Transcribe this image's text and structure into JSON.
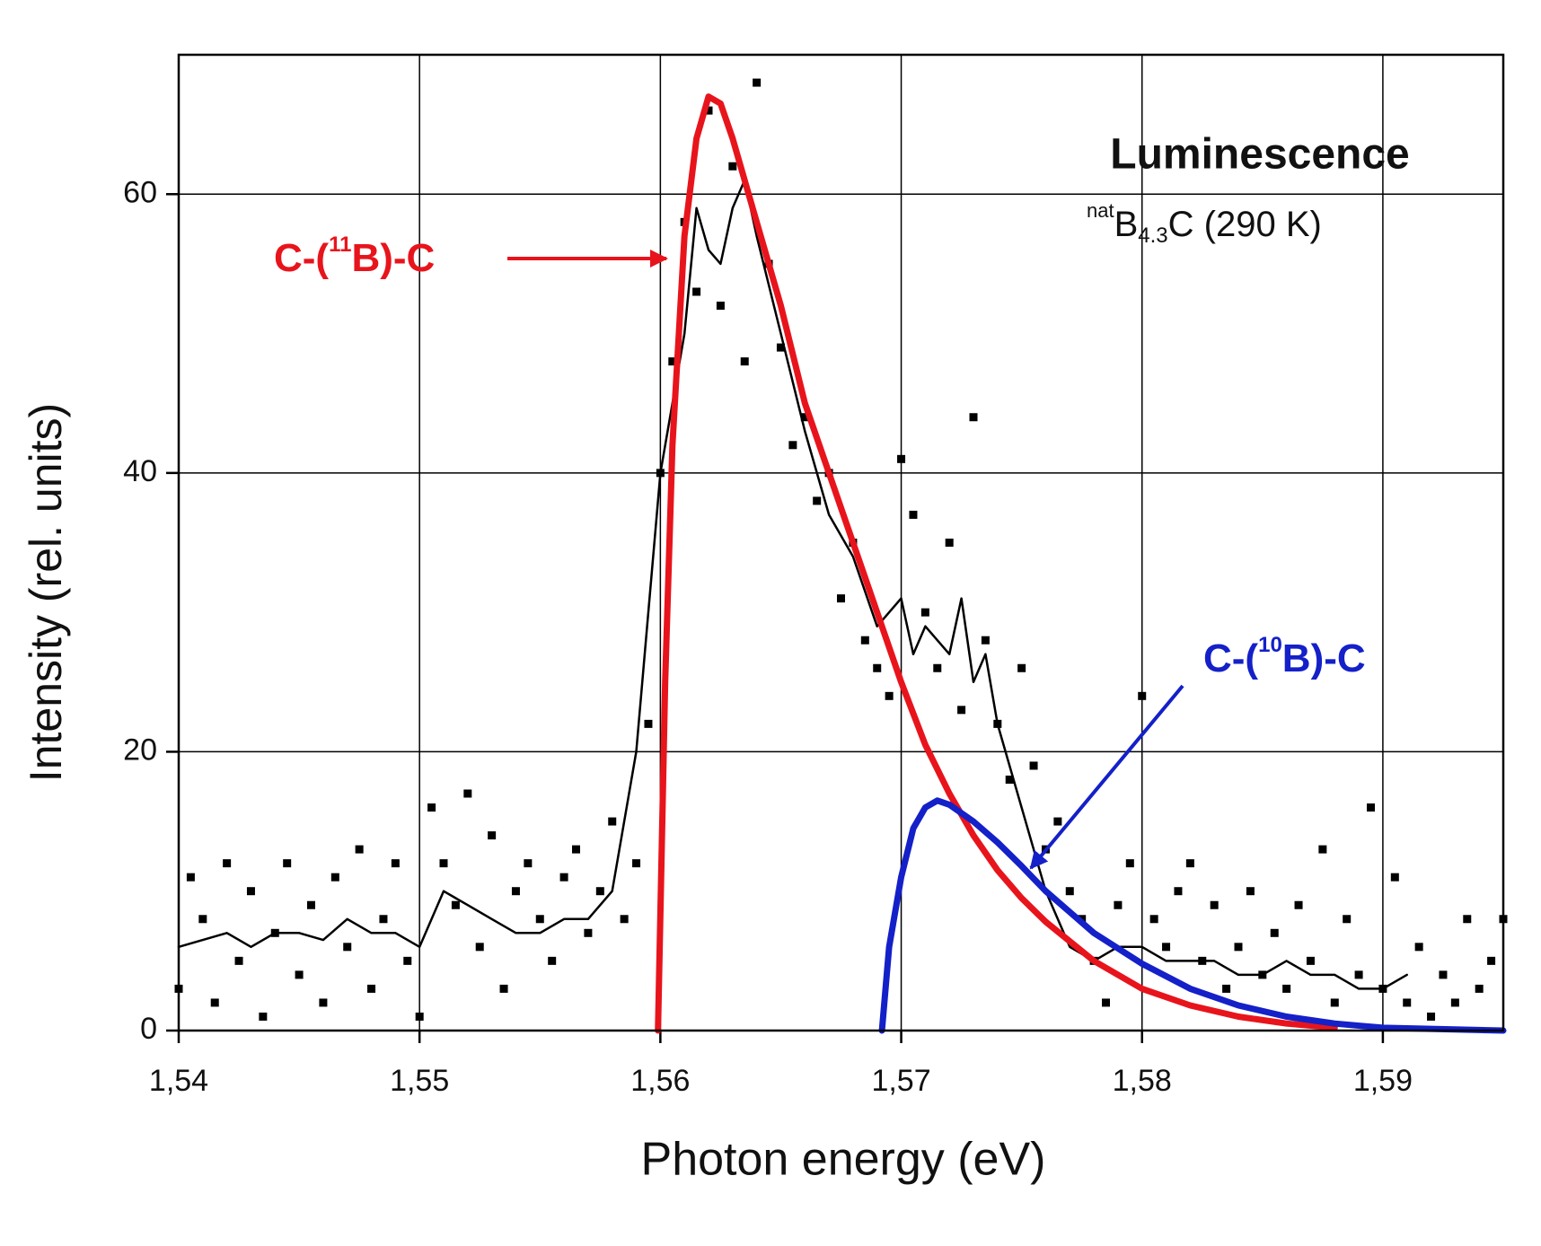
{
  "chart_data": {
    "type": "scatter",
    "xlabel": "Photon energy (eV)",
    "ylabel": "Intensity (rel. units)",
    "xlim": [
      1.54,
      1.595
    ],
    "ylim": [
      0,
      70
    ],
    "xticks": [
      {
        "value": 1.54,
        "label": "1,54"
      },
      {
        "value": 1.55,
        "label": "1,55"
      },
      {
        "value": 1.56,
        "label": "1,56"
      },
      {
        "value": 1.57,
        "label": "1,57"
      },
      {
        "value": 1.58,
        "label": "1,58"
      },
      {
        "value": 1.59,
        "label": "1,59"
      }
    ],
    "yticks": [
      0,
      20,
      40,
      60
    ],
    "grid": true,
    "annotations": {
      "heading": "Luminescence",
      "sample": [
        "nat",
        "B",
        "4.3",
        "C (290 K)"
      ],
      "peak_11B": {
        "parts": [
          "C-(",
          "11",
          "B)-C"
        ],
        "color": "#e8141c"
      },
      "peak_10B": {
        "parts": [
          "C-(",
          "10",
          "B)-C"
        ],
        "color": "#1420c8"
      }
    },
    "series": [
      {
        "type": "scatter",
        "color": "#000000",
        "x": [
          1.54,
          1.5405,
          1.541,
          1.5415,
          1.542,
          1.5425,
          1.543,
          1.5435,
          1.544,
          1.5445,
          1.545,
          1.5455,
          1.546,
          1.5465,
          1.547,
          1.5475,
          1.548,
          1.5485,
          1.549,
          1.5495,
          1.55,
          1.5505,
          1.551,
          1.5515,
          1.552,
          1.5525,
          1.553,
          1.5535,
          1.554,
          1.5545,
          1.555,
          1.5555,
          1.556,
          1.5565,
          1.557,
          1.5575,
          1.558,
          1.5585,
          1.559,
          1.5595,
          1.56,
          1.5605,
          1.561,
          1.5615,
          1.562,
          1.5625,
          1.563,
          1.5635,
          1.564,
          1.5645,
          1.565,
          1.5655,
          1.566,
          1.5665,
          1.567,
          1.5675,
          1.568,
          1.5685,
          1.569,
          1.5695,
          1.57,
          1.5705,
          1.571,
          1.5715,
          1.572,
          1.5725,
          1.573,
          1.5735,
          1.574,
          1.5745,
          1.575,
          1.5755,
          1.576,
          1.5765,
          1.577,
          1.5775,
          1.578,
          1.5785,
          1.579,
          1.5795,
          1.58,
          1.5805,
          1.581,
          1.5815,
          1.582,
          1.5825,
          1.583,
          1.5835,
          1.584,
          1.5845,
          1.585,
          1.5855,
          1.586,
          1.5865,
          1.587,
          1.5875,
          1.588,
          1.5885,
          1.589,
          1.5895,
          1.59,
          1.5905,
          1.591,
          1.5915,
          1.592,
          1.5925,
          1.593,
          1.5935,
          1.594,
          1.5945,
          1.595
        ],
        "values": [
          3,
          11,
          8,
          2,
          12,
          5,
          10,
          1,
          7,
          12,
          4,
          9,
          2,
          11,
          6,
          13,
          3,
          8,
          12,
          5,
          1,
          16,
          12,
          9,
          17,
          6,
          14,
          3,
          10,
          12,
          8,
          5,
          11,
          13,
          7,
          10,
          15,
          8,
          12,
          22,
          40,
          48,
          58,
          53,
          66,
          52,
          62,
          48,
          68,
          55,
          49,
          42,
          44,
          38,
          40,
          31,
          35,
          28,
          26,
          24,
          41,
          37,
          30,
          26,
          35,
          23,
          44,
          28,
          22,
          18,
          26,
          19,
          13,
          15,
          10,
          8,
          5,
          2,
          9,
          12,
          24,
          8,
          6,
          10,
          12,
          5,
          9,
          3,
          6,
          10,
          4,
          7,
          3,
          9,
          5,
          13,
          2,
          8,
          4,
          16,
          3,
          11,
          2,
          6,
          1,
          4,
          2,
          8,
          3,
          5,
          8
        ]
      },
      {
        "type": "line",
        "color": "#000000",
        "line_width": 2.5,
        "x": [
          1.54,
          1.541,
          1.542,
          1.543,
          1.544,
          1.545,
          1.546,
          1.547,
          1.548,
          1.549,
          1.55,
          1.551,
          1.552,
          1.553,
          1.554,
          1.555,
          1.556,
          1.557,
          1.558,
          1.559,
          1.56,
          1.561,
          1.5615,
          1.562,
          1.5625,
          1.563,
          1.5635,
          1.564,
          1.565,
          1.566,
          1.567,
          1.568,
          1.569,
          1.57,
          1.5705,
          1.571,
          1.572,
          1.5725,
          1.573,
          1.5735,
          1.574,
          1.575,
          1.576,
          1.577,
          1.578,
          1.579,
          1.58,
          1.581,
          1.582,
          1.583,
          1.584,
          1.585,
          1.586,
          1.587,
          1.588,
          1.589,
          1.59,
          1.591
        ],
        "values": [
          6,
          6.5,
          7,
          6,
          7,
          7,
          6.5,
          8,
          7,
          7,
          6,
          10,
          9,
          8,
          7,
          7,
          8,
          8,
          10,
          20,
          40,
          50,
          59,
          56,
          55,
          59,
          61,
          57,
          50,
          43,
          37,
          34,
          29,
          31,
          27,
          29,
          27,
          31,
          25,
          27,
          22,
          16,
          10,
          6,
          5,
          6,
          6,
          5,
          5,
          5,
          4,
          4,
          5,
          4,
          4,
          3,
          3,
          4
        ]
      },
      {
        "type": "line",
        "color": "#e8141c",
        "line_width": 7,
        "x": [
          1.5599,
          1.5602,
          1.5605,
          1.561,
          1.5615,
          1.562,
          1.5625,
          1.563,
          1.564,
          1.565,
          1.566,
          1.567,
          1.568,
          1.569,
          1.57,
          1.571,
          1.572,
          1.573,
          1.574,
          1.575,
          1.576,
          1.578,
          1.58,
          1.582,
          1.584,
          1.586,
          1.588
        ],
        "values": [
          0,
          25,
          42,
          57,
          64,
          67,
          66.5,
          64,
          58,
          52,
          45,
          40,
          35,
          30,
          25,
          20.5,
          17,
          14,
          11.5,
          9.5,
          7.8,
          5,
          3,
          1.8,
          1,
          0.5,
          0.2
        ]
      },
      {
        "type": "line",
        "color": "#1420c8",
        "line_width": 7,
        "x": [
          1.5692,
          1.5695,
          1.57,
          1.5705,
          1.571,
          1.5715,
          1.572,
          1.573,
          1.574,
          1.575,
          1.576,
          1.577,
          1.578,
          1.58,
          1.582,
          1.584,
          1.586,
          1.588,
          1.59,
          1.595
        ],
        "values": [
          0,
          6,
          11,
          14.5,
          16,
          16.5,
          16.2,
          15,
          13.5,
          11.8,
          10,
          8.5,
          7,
          4.8,
          3,
          1.8,
          1,
          0.5,
          0.2,
          0
        ]
      }
    ]
  }
}
